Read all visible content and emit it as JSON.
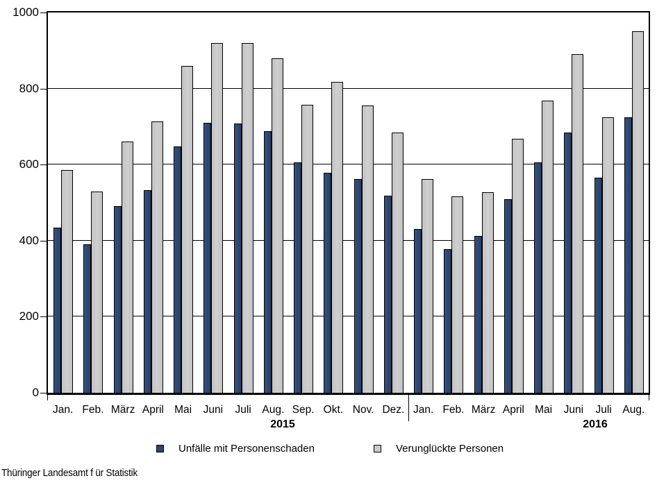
{
  "chart_data": {
    "type": "bar",
    "title": "",
    "categories": [
      "Jan.",
      "Feb.",
      "März",
      "April",
      "Mai",
      "Juni",
      "Juli",
      "Aug.",
      "Sep.",
      "Okt.",
      "Nov.",
      "Dez.",
      "Jan.",
      "Feb.",
      "März",
      "April",
      "Mai",
      "Juni",
      "Juli",
      "Aug."
    ],
    "year_groups": [
      {
        "label": "2015",
        "start": 0,
        "count": 12
      },
      {
        "label": "2016",
        "start": 12,
        "count": 8
      }
    ],
    "series": [
      {
        "name": "Unfälle mit Personenschaden",
        "color": "#2c4770",
        "values": [
          435,
          390,
          490,
          532,
          648,
          710,
          708,
          688,
          605,
          578,
          562,
          518,
          430,
          378,
          413,
          510,
          605,
          685,
          565,
          724
        ]
      },
      {
        "name": "Verunglückte Personen",
        "color": "#c9c9c9",
        "values": [
          585,
          530,
          660,
          713,
          860,
          920,
          920,
          880,
          758,
          818,
          755,
          685,
          562,
          517,
          527,
          667,
          768,
          890,
          725,
          950
        ]
      }
    ],
    "ylim": [
      0,
      1000
    ],
    "yticks": [
      0,
      200,
      400,
      600,
      800,
      1000
    ],
    "grid": true,
    "legend_position": "bottom"
  },
  "footer": {
    "source": "Thüringer  Landesamt f ür Statistik"
  },
  "colors": {
    "axis": "#000000",
    "background": "#ffffff",
    "series1": "#2c4770",
    "series2": "#c9c9c9"
  }
}
